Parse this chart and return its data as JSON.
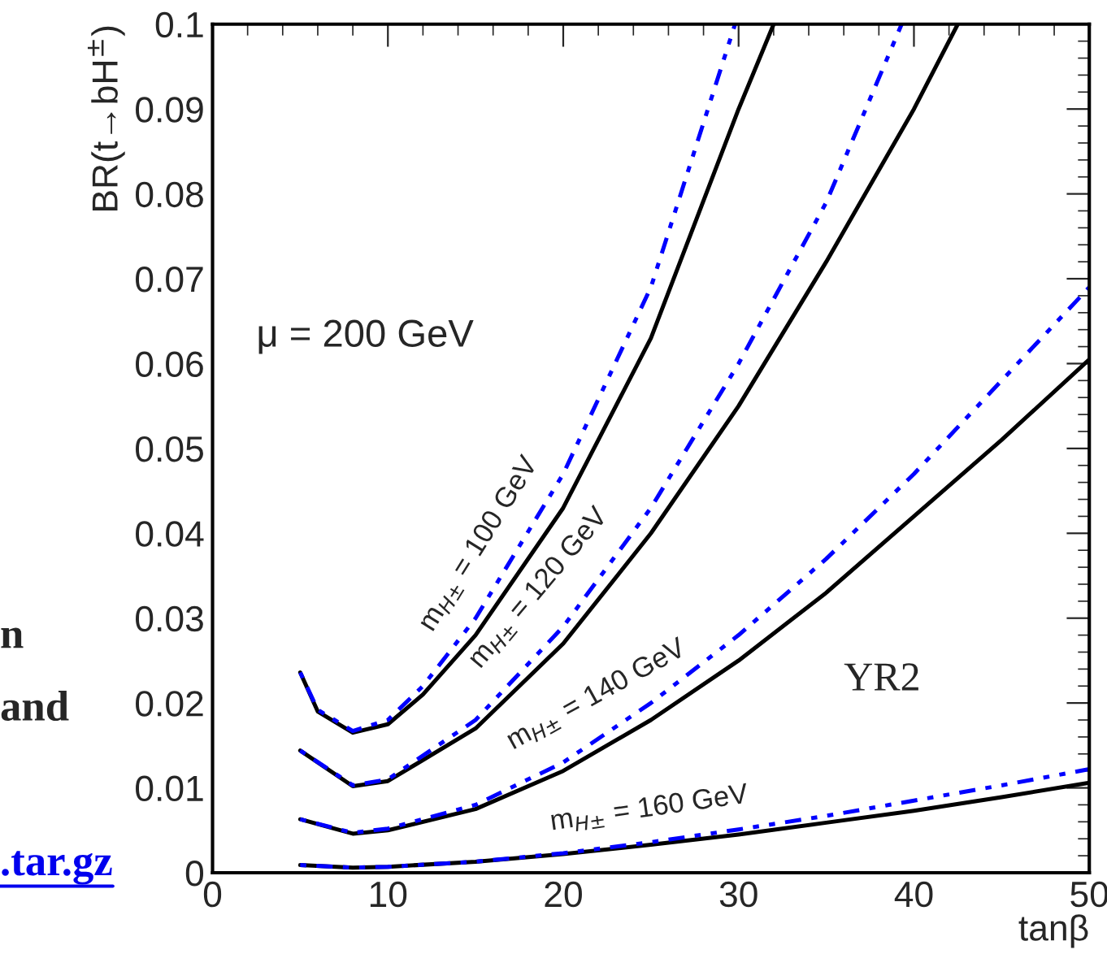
{
  "chart_data": {
    "type": "line",
    "xlabel": "tanβ",
    "ylabel": "BR(t→bH$^{±}$)",
    "xlim": [
      0,
      50
    ],
    "xticks": [
      0,
      10,
      20,
      30,
      40,
      50
    ],
    "ylim": [
      0,
      0.1
    ],
    "yticks": [
      0,
      0.01,
      0.02,
      0.03,
      0.04,
      0.05,
      0.06,
      0.07,
      0.08,
      0.09,
      0.1
    ],
    "grid": false,
    "legend": false,
    "series": [
      {
        "color": "#000000",
        "line_style": "solid",
        "x": [
          5,
          6,
          8,
          10,
          12,
          15,
          20,
          25,
          30,
          32
        ],
        "values": [
          0.0236,
          0.019,
          0.0165,
          0.0175,
          0.021,
          0.028,
          0.043,
          0.063,
          0.09,
          0.1
        ]
      },
      {
        "color": "#0000ff",
        "line_style": "dotted",
        "x": [
          5,
          6,
          8,
          10,
          12,
          15,
          20,
          25,
          29.8
        ],
        "values": [
          0.0236,
          0.0192,
          0.0167,
          0.018,
          0.022,
          0.03,
          0.047,
          0.069,
          0.1
        ]
      },
      {
        "color": "#000000",
        "line_style": "solid",
        "x": [
          5,
          8,
          10,
          15,
          20,
          25,
          30,
          35,
          40,
          42.5
        ],
        "values": [
          0.0144,
          0.0102,
          0.0108,
          0.017,
          0.027,
          0.04,
          0.055,
          0.072,
          0.09,
          0.1
        ]
      },
      {
        "color": "#0000ff",
        "line_style": "dotted",
        "x": [
          5,
          8,
          10,
          15,
          20,
          25,
          30,
          35,
          39.3
        ],
        "values": [
          0.0144,
          0.0103,
          0.011,
          0.018,
          0.029,
          0.043,
          0.06,
          0.079,
          0.1
        ]
      },
      {
        "color": "#000000",
        "line_style": "solid",
        "x": [
          5,
          8,
          10,
          15,
          20,
          25,
          30,
          35,
          40,
          45,
          50
        ],
        "values": [
          0.0063,
          0.0046,
          0.005,
          0.0075,
          0.012,
          0.018,
          0.025,
          0.033,
          0.042,
          0.051,
          0.0605
        ]
      },
      {
        "color": "#0000ff",
        "line_style": "dotted",
        "x": [
          5,
          8,
          10,
          15,
          20,
          25,
          30,
          35,
          40,
          45,
          50
        ],
        "values": [
          0.0063,
          0.0047,
          0.0052,
          0.008,
          0.013,
          0.02,
          0.028,
          0.037,
          0.047,
          0.058,
          0.069
        ]
      },
      {
        "color": "#000000",
        "line_style": "solid",
        "x": [
          5,
          8,
          10,
          15,
          20,
          25,
          30,
          35,
          40,
          45,
          50
        ],
        "values": [
          0.0009,
          0.0006,
          0.0007,
          0.0013,
          0.0022,
          0.0033,
          0.0045,
          0.0059,
          0.0073,
          0.0089,
          0.0106
        ]
      },
      {
        "color": "#0000ff",
        "line_style": "dotted",
        "x": [
          5,
          8,
          10,
          15,
          20,
          25,
          30,
          35,
          40,
          45,
          50
        ],
        "values": [
          0.0009,
          0.0006,
          0.0007,
          0.0013,
          0.0023,
          0.0036,
          0.0051,
          0.0067,
          0.0085,
          0.0103,
          0.0122
        ]
      }
    ],
    "annotations": [
      "m$_{H±}$ = 100 GeV",
      "m$_{H±}$ = 120 GeV",
      "m$_{H±}$ = 140 GeV",
      "m$_{H±}$ = 160 GeV",
      "μ = 200 GeV",
      "YR2",
      "n",
      "and",
      ".tar.gz"
    ]
  }
}
